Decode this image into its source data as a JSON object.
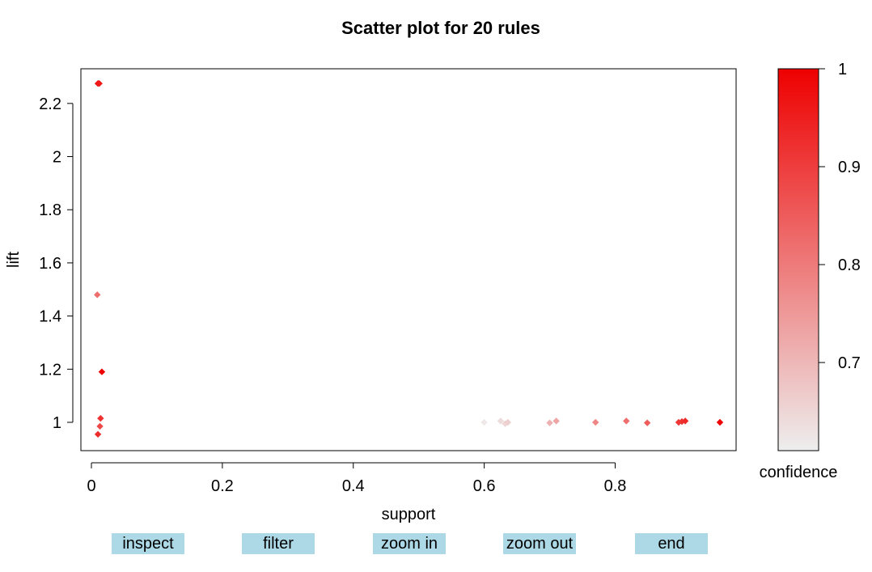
{
  "chart_data": {
    "type": "scatter",
    "title": "Scatter plot for 20 rules",
    "xlabel": "support",
    "ylabel": "lift",
    "xlim": [
      0,
      0.96
    ],
    "ylim": [
      0.93,
      2.3
    ],
    "x_ticks": [
      "0",
      "0.2",
      "0.4",
      "0.6",
      "0.8"
    ],
    "y_ticks": [
      "1",
      "1.2",
      "1.4",
      "1.6",
      "1.8",
      "2",
      "2.2"
    ],
    "color_legend": {
      "title": "confidence",
      "range": [
        0.61,
        1.0
      ],
      "ticks": [
        "0.7",
        "0.8",
        "0.9",
        "1"
      ],
      "low_color": "#eeeeee",
      "high_color": "#ee0000"
    },
    "points": [
      {
        "support": 0.01,
        "lift": 2.275,
        "confidence": 0.97
      },
      {
        "support": 0.012,
        "lift": 2.275,
        "confidence": 0.96
      },
      {
        "support": 0.009,
        "lift": 1.48,
        "confidence": 0.82
      },
      {
        "support": 0.016,
        "lift": 1.19,
        "confidence": 1.0
      },
      {
        "support": 0.014,
        "lift": 1.015,
        "confidence": 0.92
      },
      {
        "support": 0.013,
        "lift": 0.985,
        "confidence": 0.88
      },
      {
        "support": 0.01,
        "lift": 0.955,
        "confidence": 0.93
      },
      {
        "support": 0.6,
        "lift": 1.0,
        "confidence": 0.62
      },
      {
        "support": 0.625,
        "lift": 1.005,
        "confidence": 0.64
      },
      {
        "support": 0.632,
        "lift": 0.995,
        "confidence": 0.65
      },
      {
        "support": 0.636,
        "lift": 1.0,
        "confidence": 0.66
      },
      {
        "support": 0.7,
        "lift": 0.998,
        "confidence": 0.71
      },
      {
        "support": 0.71,
        "lift": 1.005,
        "confidence": 0.73
      },
      {
        "support": 0.77,
        "lift": 1.0,
        "confidence": 0.78
      },
      {
        "support": 0.817,
        "lift": 1.005,
        "confidence": 0.82
      },
      {
        "support": 0.849,
        "lift": 0.998,
        "confidence": 0.85
      },
      {
        "support": 0.897,
        "lift": 1.0,
        "confidence": 0.91
      },
      {
        "support": 0.902,
        "lift": 1.003,
        "confidence": 0.92
      },
      {
        "support": 0.907,
        "lift": 1.005,
        "confidence": 0.93
      },
      {
        "support": 0.96,
        "lift": 1.0,
        "confidence": 0.99
      }
    ]
  },
  "buttons": {
    "inspect": "inspect",
    "filter": "filter",
    "zoom_in": "zoom in",
    "zoom_out": "zoom out",
    "end": "end"
  }
}
